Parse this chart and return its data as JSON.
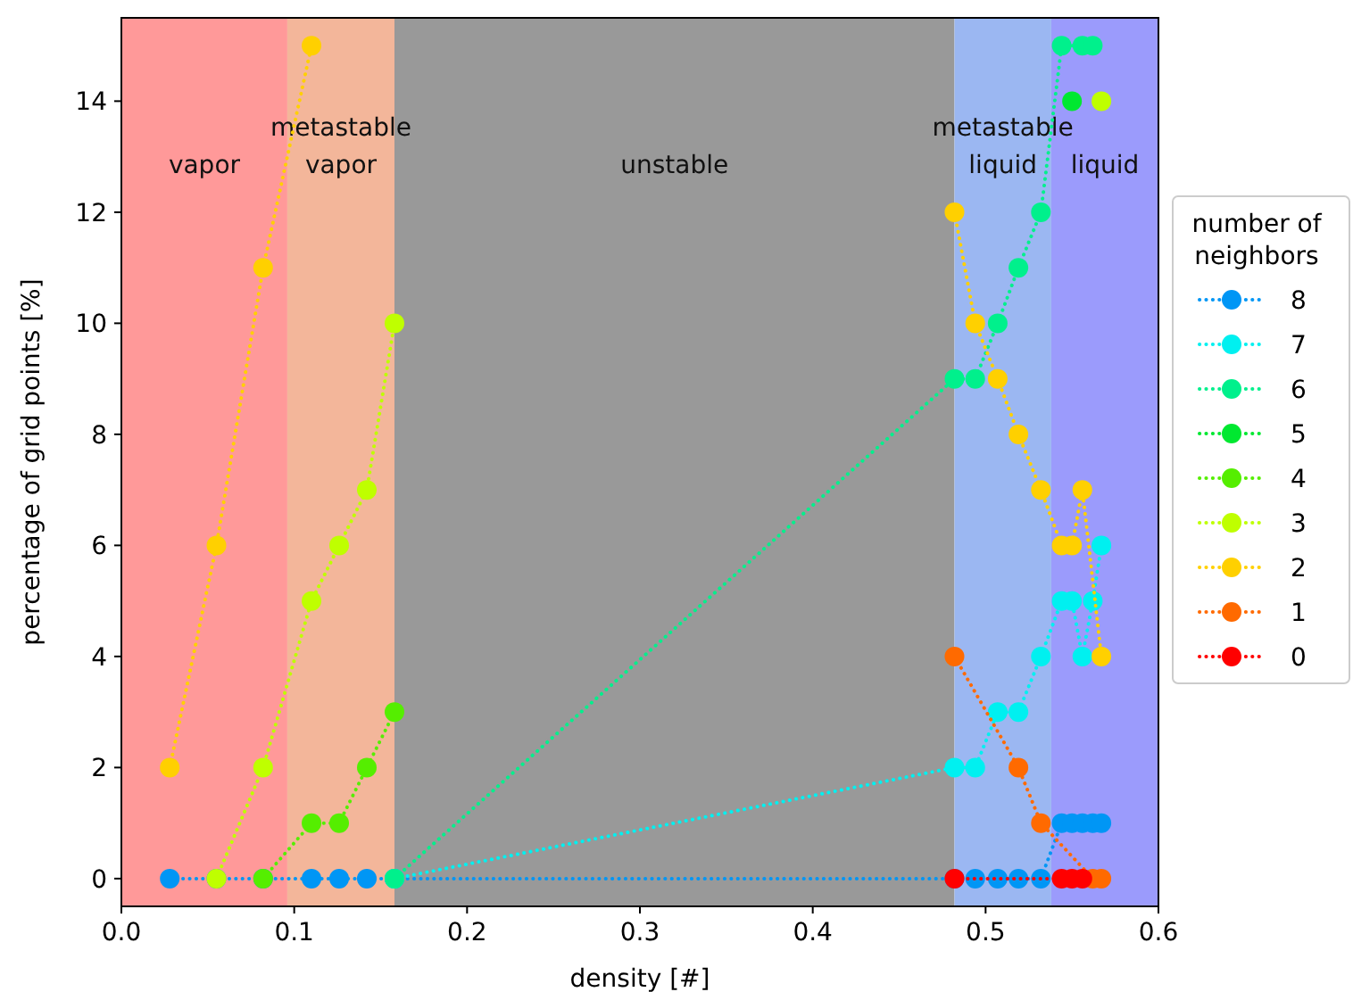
{
  "chart_data": {
    "type": "line",
    "xlabel": "density [#]",
    "ylabel": "percentage of grid points [%]",
    "legend_title": "number of\nneighbors",
    "legend": "right",
    "marker": "circle",
    "line_style": "dotted",
    "grid": false,
    "xlim": [
      0,
      0.6
    ],
    "xticks": [
      {
        "value": 0,
        "label": "0.0"
      },
      {
        "value": 0.1,
        "label": "0.1"
      },
      {
        "value": 0.2,
        "label": "0.2"
      },
      {
        "value": 0.3,
        "label": "0.3"
      },
      {
        "value": 0.4,
        "label": "0.4"
      },
      {
        "value": 0.5,
        "label": "0.5"
      },
      {
        "value": 0.6,
        "label": "0.6"
      }
    ],
    "ylim": [
      -0.5,
      15.5
    ],
    "yticks": [
      0,
      2,
      4,
      6,
      8,
      10,
      12,
      14
    ],
    "bands": [
      {
        "axis": "x",
        "from": 0,
        "to": 0.096,
        "label": "vapor",
        "color": "#ff9999"
      },
      {
        "axis": "x",
        "from": 0.096,
        "to": 0.158,
        "label": "metastable\nvapor",
        "color": "#f3b69a"
      },
      {
        "axis": "x",
        "from": 0.158,
        "to": 0.482,
        "label": "unstable",
        "color": "#999999"
      },
      {
        "axis": "x",
        "from": 0.482,
        "to": 0.538,
        "label": "metastable\nliquid",
        "color": "#9bb7f2"
      },
      {
        "axis": "x",
        "from": 0.538,
        "to": 0.6,
        "label": "liquid",
        "color": "#9b9bfc"
      }
    ],
    "series": [
      {
        "name": "8",
        "color": "#0096f5",
        "x": [
          0.028,
          0.055,
          0.082,
          0.11,
          0.126,
          0.142,
          0.158,
          0.482,
          0.494,
          0.507,
          0.519,
          0.532,
          0.544,
          0.55,
          0.556,
          0.562,
          0.567
        ],
        "values": [
          0,
          0,
          0,
          0,
          0,
          0,
          0,
          0,
          0,
          0,
          0,
          0,
          1,
          1,
          1,
          1,
          1
        ]
      },
      {
        "name": "7",
        "color": "#00f0f0",
        "x": [
          0.158,
          0.482,
          0.494,
          0.507,
          0.519,
          0.532,
          0.544,
          0.55,
          0.556,
          0.562,
          0.567
        ],
        "values": [
          0,
          2,
          2,
          3,
          3,
          4,
          5,
          5,
          4,
          5,
          6
        ]
      },
      {
        "name": "6",
        "color": "#00f08c",
        "x": [
          0.158,
          0.482,
          0.494,
          0.507,
          0.519,
          0.532,
          0.544,
          0.556,
          0.562
        ],
        "values": [
          0,
          9,
          9,
          10,
          11,
          12,
          15,
          15,
          15
        ]
      },
      {
        "name": "5",
        "color": "#00e830",
        "x": [
          0.55
        ],
        "values": [
          14
        ]
      },
      {
        "name": "4",
        "color": "#55ee00",
        "x": [
          0.082,
          0.11,
          0.126,
          0.142,
          0.158
        ],
        "values": [
          0,
          1,
          1,
          2,
          3
        ]
      },
      {
        "name": "3",
        "color": "#bfff00",
        "x": [
          0.055,
          0.082,
          0.11,
          0.126,
          0.142,
          0.158,
          0.3,
          0.567
        ],
        "values": [
          0,
          2,
          5,
          6,
          7,
          10,
          null,
          14
        ]
      },
      {
        "name": "2",
        "color": "#ffd000",
        "x": [
          0.028,
          0.055,
          0.082,
          0.11,
          0.3,
          0.482,
          0.494,
          0.507,
          0.519,
          0.532,
          0.544,
          0.55,
          0.556,
          0.567
        ],
        "values": [
          2,
          6,
          11,
          15,
          null,
          12,
          10,
          9,
          8,
          7,
          6,
          6,
          7,
          4
        ]
      },
      {
        "name": "1",
        "color": "#ff6a00",
        "x": [
          0.482,
          0.519,
          0.532,
          0.562,
          0.567
        ],
        "values": [
          4,
          2,
          1,
          0,
          0
        ]
      },
      {
        "name": "0",
        "color": "#ff0000",
        "x": [
          0.482,
          0.544,
          0.55,
          0.556
        ],
        "values": [
          0,
          0,
          0,
          0
        ]
      }
    ]
  }
}
